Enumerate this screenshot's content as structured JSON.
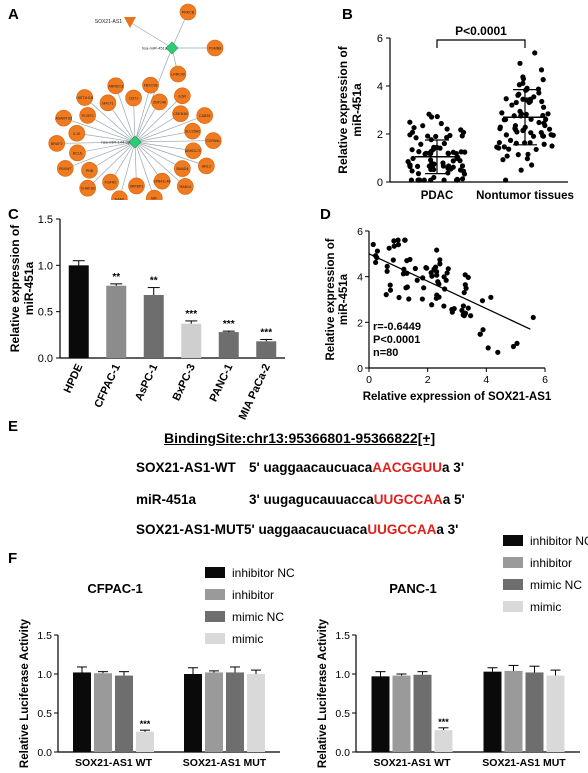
{
  "panels": {
    "A": "A",
    "B": "B",
    "C": "C",
    "D": "D",
    "E": "E",
    "F": "F"
  },
  "network": {
    "hubs": [
      "hsa-miR-451a",
      "hsa-miR-144-3p"
    ],
    "lnc": "SOX21-AS1",
    "hub1_targets": [
      "PRKCB",
      "PSMB8",
      "LRRC40"
    ],
    "hub2_targets": [
      "FBXO38",
      "ZNF148",
      "IL6R",
      "CDKN1B",
      "CAB39",
      "SLC25A2",
      "CCRN4L",
      "ABHD17C",
      "ARL2",
      "SMAD4",
      "RAB14",
      "EPB41L4B",
      "MIF",
      "SRFBP1",
      "TIAM1",
      "FGFR2",
      "CHAF1B",
      "PHB",
      "FBXW7",
      "BCL6",
      "BRAF2",
      "IL10",
      "ADAMTS5",
      "PCGF2",
      "HIST1H1B",
      "MALT1",
      "ARRDC3",
      "CD71"
    ]
  },
  "chart_data": [
    {
      "panel": "B",
      "type": "scatter",
      "categories": [
        "PDAC",
        "Nontumor tissues"
      ],
      "ylabel": "Relative expression of miR-451a",
      "ylim": [
        0,
        6
      ],
      "yticks": [
        0,
        2,
        4,
        6
      ],
      "means": [
        1.05,
        2.7
      ],
      "sd": [
        0.7,
        1.15
      ],
      "n": [
        80,
        80
      ],
      "annotation": "P<0.0001"
    },
    {
      "panel": "C",
      "type": "bar",
      "categories": [
        "HPDE",
        "CFPAC-1",
        "AsPC-1",
        "BxPC-3",
        "PANC-1",
        "MIA PaCa-2"
      ],
      "values": [
        1.0,
        0.78,
        0.68,
        0.37,
        0.28,
        0.18
      ],
      "errors": [
        0.05,
        0.02,
        0.08,
        0.03,
        0.01,
        0.02
      ],
      "significance": [
        "",
        "**",
        "**",
        "***",
        "***",
        "***"
      ],
      "colors": [
        "#0a0a0a",
        "#8c8c8c",
        "#6e6e6e",
        "#cfcfcf",
        "#6e6e6e",
        "#6e6e6e"
      ],
      "ylabel": "Relative expression of miR-451a",
      "ylim": [
        0,
        1.5
      ],
      "yticks": [
        0.0,
        0.5,
        1.0,
        1.5
      ]
    },
    {
      "panel": "D",
      "type": "scatter",
      "xlabel": "Relative expression of SOX21-AS1",
      "ylabel": "Relative expression of miR-451a",
      "xlim": [
        0,
        6
      ],
      "ylim": [
        0,
        6
      ],
      "xticks": [
        0,
        2,
        4,
        6
      ],
      "yticks": [
        0,
        2,
        4,
        6
      ],
      "fit": {
        "x": [
          0,
          5.5
        ],
        "y": [
          5.0,
          1.7
        ]
      },
      "stats": [
        "r=-0.6449",
        "P<0.0001",
        "n=80"
      ]
    },
    {
      "panel": "F-left",
      "type": "bar",
      "title": "CFPAC-1",
      "categories": [
        "SOX21-AS1 WT",
        "SOX21-AS1 MUT"
      ],
      "series": [
        {
          "name": "inhibitor NC",
          "values": [
            1.02,
            1.0
          ],
          "errors": [
            0.07,
            0.08
          ],
          "color": "#0a0a0a"
        },
        {
          "name": "inhibitor",
          "values": [
            1.01,
            1.02
          ],
          "errors": [
            0.02,
            0.02
          ],
          "color": "#9a9a9a"
        },
        {
          "name": "mimic NC",
          "values": [
            0.98,
            1.02
          ],
          "errors": [
            0.05,
            0.07
          ],
          "color": "#6e6e6e"
        },
        {
          "name": "mimic",
          "values": [
            0.26,
            1.0
          ],
          "errors": [
            0.02,
            0.05
          ],
          "color": "#d9d9d9"
        }
      ],
      "significance": [
        "***",
        ""
      ],
      "ylabel": "Relative Luciferase Activity",
      "ylim": [
        0,
        1.5
      ],
      "yticks": [
        "0.0",
        "0.5",
        "1.0",
        "1.5"
      ]
    },
    {
      "panel": "F-right",
      "type": "bar",
      "title": "PANC-1",
      "categories": [
        "SOX21-AS1 WT",
        "SOX21-AS1 MUT"
      ],
      "series": [
        {
          "name": "inhibitor NC",
          "values": [
            0.97,
            1.03
          ],
          "errors": [
            0.06,
            0.05
          ],
          "color": "#0a0a0a"
        },
        {
          "name": "inhibitor",
          "values": [
            0.98,
            1.04
          ],
          "errors": [
            0.02,
            0.07
          ],
          "color": "#9a9a9a"
        },
        {
          "name": "mimic NC",
          "values": [
            0.99,
            1.02
          ],
          "errors": [
            0.04,
            0.08
          ],
          "color": "#6e6e6e"
        },
        {
          "name": "mimic",
          "values": [
            0.28,
            0.98
          ],
          "errors": [
            0.03,
            0.07
          ],
          "color": "#d9d9d9"
        }
      ],
      "significance": [
        "***",
        ""
      ],
      "ylabel": "Relative Luciferase Activity",
      "ylim": [
        0,
        1.5
      ],
      "yticks": [
        "0.0",
        "0.5",
        "1.0",
        "1.5"
      ]
    }
  ],
  "sequences": {
    "binding_site": "BindingSite:chr13:95366801-95366822[+]",
    "rows": [
      {
        "name": "SOX21-AS1-WT",
        "left": "5'",
        "seq": "uaggaacaucuaca",
        "site": "AACGGUU",
        "right": "a 3'"
      },
      {
        "name": "miR-451a",
        "left": "3'",
        "seq": "uugagucauuacca",
        "site": "UUGCCAA",
        "right": "a 5'"
      },
      {
        "name": "SOX21-AS1-MUT",
        "left": "5'",
        "seq": "uaggaacaucuaca",
        "site": "UUGCCAA",
        "right": "a 3'"
      }
    ]
  }
}
